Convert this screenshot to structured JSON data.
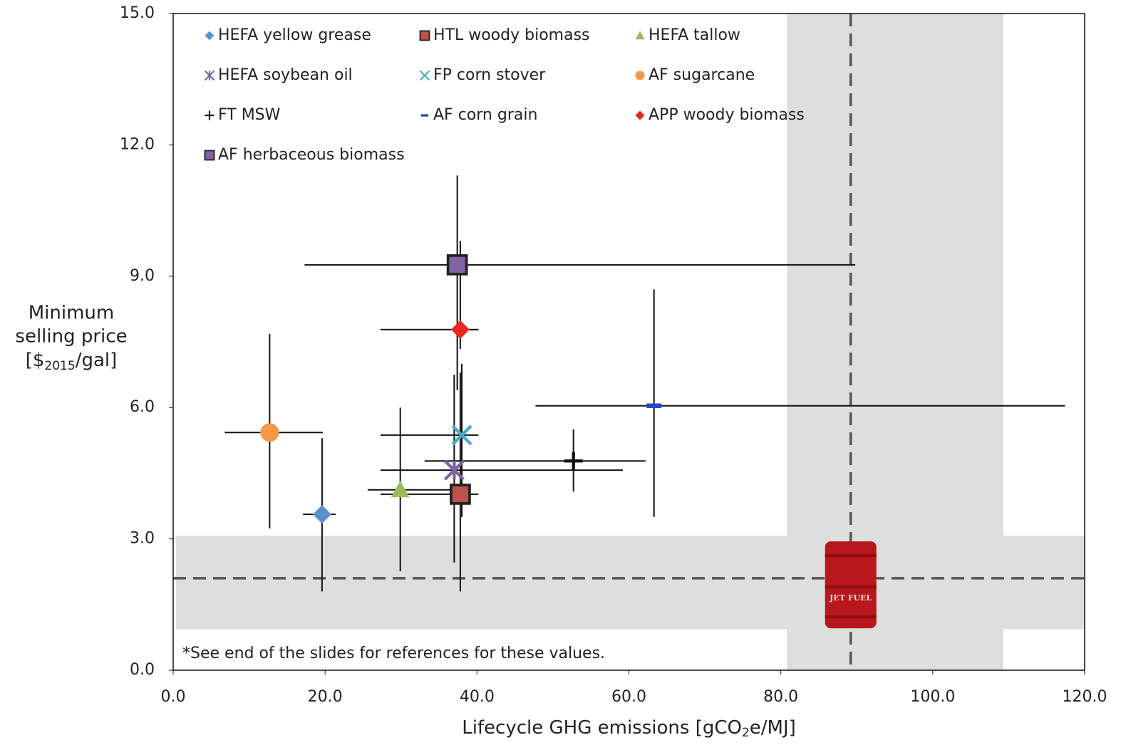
{
  "chart_data": {
    "type": "scatter",
    "xlabel": [
      "Lifecycle GHG emissions [gCO",
      "2",
      "e/MJ]"
    ],
    "ylabel": [
      "Minimum",
      "selling price",
      "[$",
      "2015",
      "/gal]"
    ],
    "note": "*See end of the slides for references for these values.",
    "xlim": [
      0,
      120
    ],
    "ylim": [
      0,
      15
    ],
    "xticks": [
      {
        "value": 0,
        "label": "0.0"
      },
      {
        "value": 20,
        "label": "20.0"
      },
      {
        "value": 40,
        "label": "40.0"
      },
      {
        "value": 60,
        "label": "60.0"
      },
      {
        "value": 80,
        "label": "80.0"
      },
      {
        "value": 100,
        "label": "100.0"
      },
      {
        "value": 120,
        "label": "120.0"
      }
    ],
    "yticks": [
      {
        "value": 0,
        "label": "0.0"
      },
      {
        "value": 3,
        "label": "3.0"
      },
      {
        "value": 6,
        "label": "6.0"
      },
      {
        "value": 9,
        "label": "9.0"
      },
      {
        "value": 12,
        "label": "12.0"
      },
      {
        "value": 15,
        "label": "15.0"
      }
    ],
    "bands": [
      {
        "axis": "x",
        "range": [
          80.8,
          109.3
        ],
        "color": "#dedede"
      },
      {
        "axis": "y",
        "range": [
          0.94,
          3.07
        ],
        "color": "#dedede"
      }
    ],
    "reference_lines": [
      {
        "axis": "x",
        "value": 89.2,
        "color": "#555"
      },
      {
        "axis": "y",
        "value": 2.1,
        "color": "#555"
      }
    ],
    "barrel": {
      "x": 89.2,
      "y": 2.0,
      "label": "JET FUEL"
    },
    "series": [
      {
        "name": "HEFA yellow grease",
        "marker": "diamond",
        "color": "#5b8fc9",
        "x": 19.6,
        "y": 3.56,
        "x_range": [
          17.1,
          21.4
        ],
        "y_range": [
          1.8,
          5.3
        ]
      },
      {
        "name": "HTL woody biomass",
        "marker": "square",
        "color": "#c0504d",
        "edge": "#222",
        "x": 37.8,
        "y": 4.02,
        "x_range": [
          27.3,
          40.2
        ],
        "y_range": [
          1.8,
          6.8
        ]
      },
      {
        "name": "HEFA tallow",
        "marker": "triangle",
        "color": "#9bbb59",
        "x": 29.9,
        "y": 4.12,
        "x_range": [
          25.6,
          38.0
        ],
        "y_range": [
          2.26,
          6.0
        ]
      },
      {
        "name": "HEFA soybean oil",
        "marker": "asterisk",
        "color": "#8064a2",
        "x": 37.0,
        "y": 4.57,
        "x_range": [
          27.3,
          59.2
        ],
        "y_range": [
          2.46,
          6.75
        ]
      },
      {
        "name": "FP corn stover",
        "marker": "cross",
        "color": "#4bacc6",
        "x": 38.0,
        "y": 5.37,
        "x_range": [
          27.3,
          40.2
        ],
        "y_range": [
          3.5,
          7.0
        ]
      },
      {
        "name": "AF sugarcane",
        "marker": "circle",
        "color": "#f79646",
        "x": 12.7,
        "y": 5.43,
        "x_range": [
          6.8,
          19.7
        ],
        "y_range": [
          3.24,
          7.68
        ]
      },
      {
        "name": "FT MSW",
        "marker": "plus",
        "color": "#111",
        "x": 52.7,
        "y": 4.78,
        "x_range": [
          33.1,
          62.2
        ],
        "y_range": [
          4.08,
          5.5
        ]
      },
      {
        "name": "AF corn grain",
        "marker": "dash",
        "color": "#2447c4",
        "x": 63.3,
        "y": 6.04,
        "x_range": [
          47.7,
          117.4
        ],
        "y_range": [
          3.5,
          8.7
        ]
      },
      {
        "name": "APP woody biomass",
        "marker": "diamond",
        "color": "#e8281e",
        "x": 37.8,
        "y": 7.78,
        "x_range": [
          27.3,
          40.2
        ],
        "y_range": [
          7.34,
          9.81
        ]
      },
      {
        "name": "AF herbaceous biomass",
        "marker": "square",
        "color": "#8064a2",
        "edge": "#222",
        "x": 37.4,
        "y": 9.26,
        "x_range": [
          17.3,
          89.8
        ],
        "y_range": [
          6.4,
          11.3
        ]
      }
    ]
  }
}
